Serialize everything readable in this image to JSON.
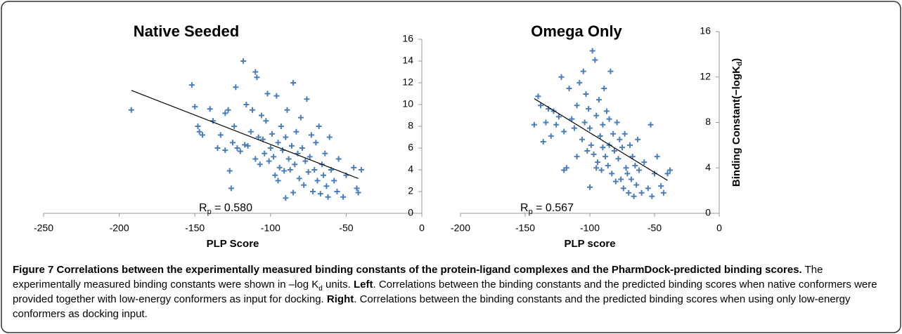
{
  "chart_data": [
    {
      "type": "scatter",
      "title": "Native Seeded",
      "xlabel": "PLP Score",
      "color": "#4a7ebb",
      "x": [
        -192,
        -152,
        -150,
        -148,
        -147,
        -145,
        -140,
        -138,
        -135,
        -133,
        -130,
        -128,
        -127,
        -126,
        -125,
        -124,
        -123,
        -122,
        -120,
        -118,
        -117,
        -116,
        -115,
        -113,
        -112,
        -110,
        -109,
        -108,
        -107,
        -106,
        -105,
        -104,
        -103,
        -102,
        -101,
        -100,
        -99,
        -98,
        -97,
        -96,
        -95,
        -94,
        -93,
        -92,
        -91,
        -90,
        -89,
        -88,
        -87,
        -86,
        -85,
        -84,
        -83,
        -82,
        -81,
        -80,
        -79,
        -78,
        -77,
        -76,
        -75,
        -74,
        -73,
        -72,
        -71,
        -70,
        -69,
        -68,
        -67,
        -66,
        -65,
        -64,
        -63,
        -62,
        -61,
        -60,
        -58,
        -56,
        -55,
        -52,
        -50,
        -45,
        -43,
        -42,
        -40,
        -90,
        -85,
        -95,
        -110,
        -130
      ],
      "y": [
        9.5,
        11.8,
        9.8,
        8.0,
        7.5,
        7.2,
        9.6,
        8.5,
        6.0,
        7.2,
        9.2,
        9.5,
        3.9,
        2.3,
        6.5,
        8.0,
        11.6,
        6.0,
        5.7,
        14.0,
        6.3,
        10.0,
        6.2,
        7.5,
        9.5,
        13.0,
        12.5,
        7.0,
        4.5,
        9.0,
        6.8,
        5.5,
        8.5,
        11.0,
        4.8,
        6.0,
        7.3,
        5.2,
        3.5,
        10.8,
        6.5,
        4.2,
        8.0,
        5.8,
        3.9,
        7.0,
        9.5,
        5.0,
        4.0,
        6.2,
        12.0,
        4.5,
        7.5,
        5.5,
        3.2,
        8.8,
        6.0,
        2.6,
        4.8,
        10.5,
        3.8,
        5.2,
        7.2,
        2.0,
        4.0,
        6.5,
        3.0,
        8.0,
        1.8,
        4.5,
        3.5,
        5.5,
        2.5,
        1.5,
        7.0,
        4.0,
        3.0,
        2.0,
        5.0,
        1.5,
        3.5,
        4.2,
        2.3,
        1.9,
        4.0,
        1.4,
        1.9,
        3.0,
        5.0,
        5.8
      ],
      "trendline": {
        "x": [
          -192,
          -42
        ],
        "y": [
          11.3,
          3.2
        ]
      },
      "annotation": {
        "text": "R",
        "subscript": "p",
        "rest": " = 0.580"
      },
      "xlim": [
        -250,
        0
      ],
      "ylim": [
        0,
        16
      ],
      "xticks": [
        -250,
        -200,
        -150,
        -100,
        -50,
        0
      ],
      "yticks": [
        0,
        2,
        4,
        6,
        8,
        10,
        12,
        14,
        16
      ]
    },
    {
      "type": "scatter",
      "title": "Omega Only",
      "xlabel": "PLP score",
      "color": "#4a7ebb",
      "ylabel": {
        "text": "Binding Constant(−logK",
        "subscript": "d",
        "rest": ")"
      },
      "x": [
        -143,
        -140,
        -138,
        -136,
        -134,
        -132,
        -130,
        -128,
        -126,
        -124,
        -122,
        -120,
        -118,
        -116,
        -114,
        -112,
        -110,
        -108,
        -106,
        -105,
        -104,
        -103,
        -102,
        -101,
        -100,
        -99,
        -98,
        -97,
        -96,
        -95,
        -94,
        -93,
        -92,
        -91,
        -90,
        -89,
        -88,
        -87,
        -86,
        -85,
        -84,
        -83,
        -82,
        -81,
        -80,
        -79,
        -78,
        -77,
        -76,
        -75,
        -74,
        -73,
        -72,
        -71,
        -70,
        -69,
        -68,
        -67,
        -66,
        -65,
        -64,
        -63,
        -62,
        -60,
        -58,
        -55,
        -53,
        -52,
        -50,
        -48,
        -45,
        -43,
        -40,
        -38,
        -100,
        -110,
        -120,
        -90,
        -95,
        -85
      ],
      "y": [
        7.8,
        10.3,
        9.5,
        6.3,
        8.0,
        9.2,
        6.8,
        9.0,
        7.8,
        8.5,
        12.0,
        7.2,
        4.0,
        11.0,
        8.3,
        7.5,
        9.5,
        11.5,
        6.5,
        12.5,
        8.0,
        10.5,
        5.5,
        9.2,
        7.5,
        6.0,
        14.3,
        5.2,
        13.5,
        8.6,
        4.5,
        10.0,
        6.8,
        3.8,
        7.8,
        11.0,
        5.0,
        9.0,
        4.2,
        6.0,
        12.5,
        3.5,
        7.0,
        5.5,
        2.8,
        8.0,
        4.8,
        6.5,
        3.0,
        5.8,
        2.2,
        7.0,
        4.0,
        3.5,
        1.8,
        6.0,
        3.0,
        5.0,
        1.5,
        4.2,
        2.5,
        6.5,
        3.8,
        1.8,
        4.5,
        2.2,
        7.8,
        1.5,
        3.5,
        5.0,
        2.4,
        1.8,
        3.5,
        3.8,
        2.3,
        5.0,
        3.8,
        5.8,
        4.0,
        8.3
      ],
      "trendline": {
        "x": [
          -143,
          -40
        ],
        "y": [
          10.1,
          2.9
        ]
      },
      "annotation": {
        "text": "R",
        "subscript": "p",
        "rest": " = 0.567"
      },
      "xlim": [
        -200,
        0
      ],
      "ylim": [
        0,
        16
      ],
      "xticks": [
        -200,
        -150,
        -100,
        -50,
        0
      ],
      "yticks": [
        0,
        4,
        8,
        12,
        16
      ]
    }
  ],
  "caption": [
    {
      "text": "Figure 7 Correlations between the experimentally measured binding constants of the protein-ligand complexes and the PharmDock-predicted binding scores.",
      "bold": true
    },
    {
      "text": " The experimentally measured binding constants were shown in –log K"
    },
    {
      "text": "d",
      "sub": true
    },
    {
      "text": " units. "
    },
    {
      "text": "Left",
      "bold": true
    },
    {
      "text": ". Correlations between the binding constants and the predicted binding scores when native conformers were provided together with low-energy conformers as input for docking. "
    },
    {
      "text": "Right",
      "bold": true
    },
    {
      "text": ". Correlations between the binding constants and the predicted binding scores when using only low-energy conformers as docking input."
    }
  ]
}
